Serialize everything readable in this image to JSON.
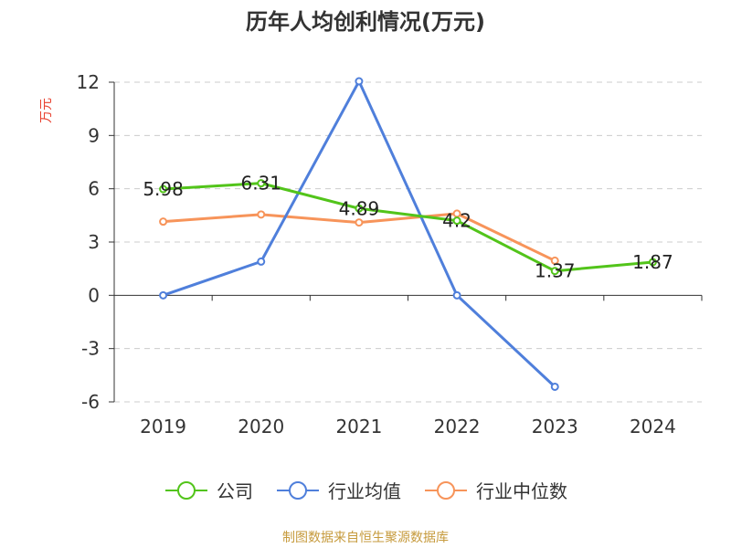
{
  "chart_data": {
    "type": "line",
    "title": "历年人均创利情况(万元)",
    "ylabel": "万元",
    "xlabel": "",
    "categories": [
      "2019",
      "2020",
      "2021",
      "2022",
      "2023",
      "2024"
    ],
    "ylim": [
      -6,
      12
    ],
    "yticks": [
      -6,
      -3,
      0,
      3,
      6,
      9,
      12
    ],
    "grid": true,
    "legend_position": "bottom",
    "series": [
      {
        "name": "公司",
        "color": "#52c41a",
        "values": [
          5.98,
          6.31,
          4.89,
          4.2,
          1.37,
          1.87
        ],
        "show_labels": true
      },
      {
        "name": "行业均值",
        "color": "#4f7fdb",
        "values": [
          0,
          1.9,
          12.05,
          0,
          -5.15,
          null
        ],
        "show_labels": false
      },
      {
        "name": "行业中位数",
        "color": "#f7945a",
        "values": [
          4.15,
          4.55,
          4.1,
          4.6,
          1.95,
          null
        ],
        "show_labels": false
      }
    ],
    "source": "制图数据来自恒生聚源数据库"
  }
}
